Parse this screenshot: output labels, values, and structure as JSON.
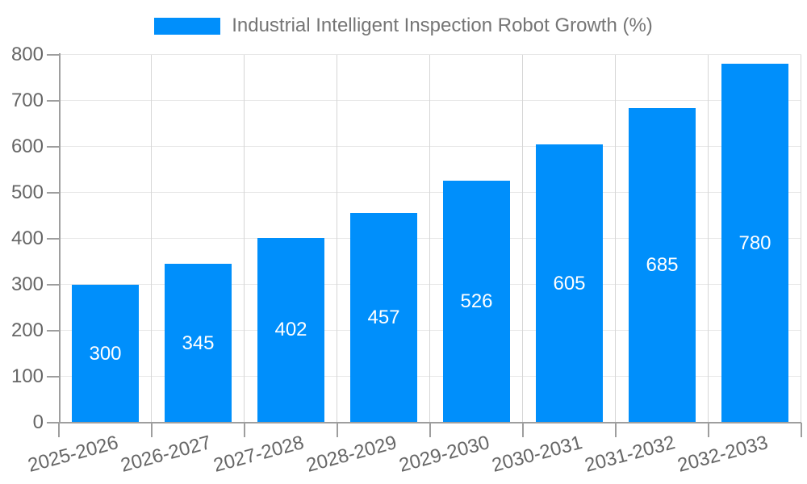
{
  "legend": {
    "label": "Industrial Intelligent Inspection Robot Growth (%)",
    "swatch_color": "#008FFB",
    "position": "top"
  },
  "chart_data": {
    "type": "bar",
    "title": "Industrial Intelligent Inspection Robot Growth (%)",
    "categories": [
      "2025-2026",
      "2026-2027",
      "2027-2028",
      "2028-2029",
      "2029-2030",
      "2030-2031",
      "2031-2032",
      "2032-2033"
    ],
    "values": [
      300,
      345,
      402,
      457,
      526,
      605,
      685,
      780
    ],
    "xlabel": "",
    "ylabel": "",
    "ylim": [
      0,
      800
    ],
    "yticks": [
      0,
      100,
      200,
      300,
      400,
      500,
      600,
      700,
      800
    ],
    "grid": "on",
    "legend_position": "top",
    "x_label_rotation": -15,
    "bar_color": "#008FFB",
    "bar_label_color": "#ffffff"
  },
  "colors": {
    "bar": "#008FFB",
    "bar_label": "#ffffff",
    "axis_line": "#9e9e9e",
    "axis_text": "#666666",
    "legend_text": "#757575",
    "grid_horizontal": "#e7e7e7",
    "grid_vertical": "#d6d6d6",
    "background": "#ffffff"
  }
}
